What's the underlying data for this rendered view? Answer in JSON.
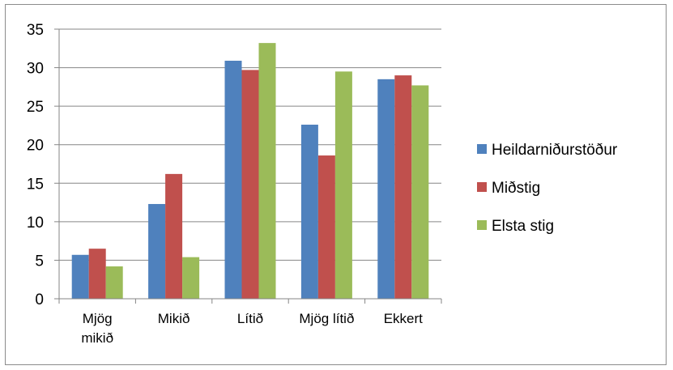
{
  "chart_data": {
    "type": "bar",
    "categories": [
      [
        "Mjög",
        "mikið"
      ],
      [
        "Mikið"
      ],
      [
        "Lítið"
      ],
      [
        "Mjög lítið"
      ],
      [
        "Ekkert"
      ]
    ],
    "series": [
      {
        "name": "Heildarniðurstöður",
        "color": "#4f81bd",
        "values": [
          5.7,
          12.3,
          30.9,
          22.6,
          28.5
        ]
      },
      {
        "name": "Miðstig",
        "color": "#c0504d",
        "values": [
          6.5,
          16.2,
          29.7,
          18.6,
          29.0
        ]
      },
      {
        "name": "Elsta stig",
        "color": "#9bbb59",
        "values": [
          4.2,
          5.4,
          33.2,
          29.5,
          27.7
        ]
      }
    ],
    "ylim": [
      0,
      35
    ],
    "yticks": [
      0,
      5,
      10,
      15,
      20,
      25,
      30,
      35
    ],
    "grid": true,
    "legend_position": "right"
  }
}
